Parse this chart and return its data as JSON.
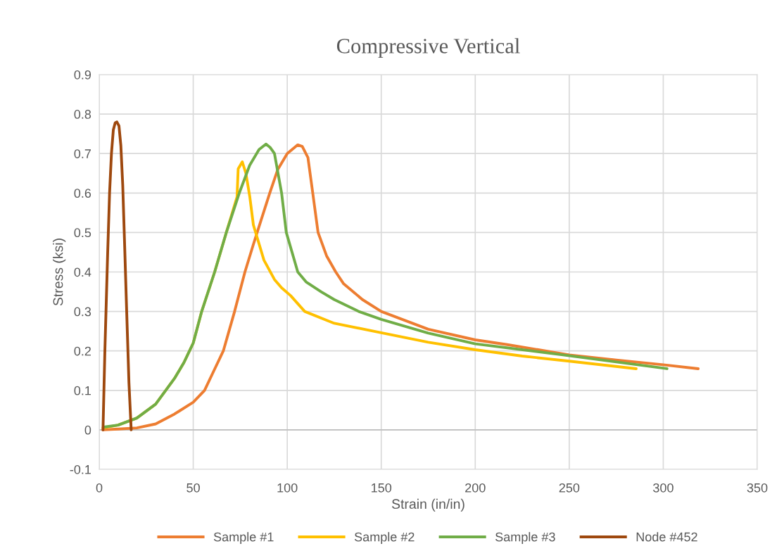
{
  "chart_data": {
    "type": "line",
    "title": "Compressive Vertical",
    "xlabel": "Strain (in/in)",
    "ylabel": "Stress (ksi)",
    "xlim": [
      0,
      350
    ],
    "xticks": [
      0,
      50,
      100,
      150,
      200,
      250,
      300,
      350
    ],
    "ylim": [
      -0.1,
      0.9
    ],
    "yticks": [
      -0.1,
      0,
      0.1,
      0.2,
      0.3,
      0.4,
      0.5,
      0.6,
      0.7,
      0.8,
      0.9
    ],
    "grid": true,
    "legend": "bottom",
    "marker": "none",
    "line_style": "solid",
    "series": [
      {
        "name": "Sample #1",
        "color": "#ed7d31",
        "x": [
          2,
          10,
          20,
          30,
          40,
          50,
          56,
          61,
          66,
          72,
          77.5,
          82,
          86,
          90.7,
          95,
          100,
          105.6,
          108,
          111,
          113,
          116.4,
          121,
          125.8,
          130,
          140,
          150,
          175,
          200,
          217,
          250,
          275,
          300,
          318.6
        ],
        "values": [
          0,
          0.002,
          0.005,
          0.015,
          0.04,
          0.07,
          0.1,
          0.15,
          0.2,
          0.3,
          0.4,
          0.47,
          0.53,
          0.6,
          0.66,
          0.7,
          0.722,
          0.718,
          0.69,
          0.62,
          0.5,
          0.44,
          0.4,
          0.37,
          0.33,
          0.3,
          0.255,
          0.228,
          0.216,
          0.19,
          0.177,
          0.165,
          0.155
        ]
      },
      {
        "name": "Sample #2",
        "color": "#ffc000",
        "x": [
          2,
          10,
          20,
          30,
          40,
          45,
          50,
          54.5,
          61.4,
          67.6,
          73.3,
          73.9,
          76.1,
          78,
          80.1,
          82,
          87.6,
          93.2,
          97,
          101.8,
          109.3,
          125,
          150,
          175,
          200,
          225,
          250,
          285.6
        ],
        "values": [
          0.005,
          0.012,
          0.03,
          0.065,
          0.13,
          0.17,
          0.22,
          0.3,
          0.4,
          0.5,
          0.59,
          0.661,
          0.679,
          0.65,
          0.59,
          0.519,
          0.43,
          0.381,
          0.36,
          0.34,
          0.3,
          0.27,
          0.246,
          0.222,
          0.203,
          0.187,
          0.174,
          0.155
        ]
      },
      {
        "name": "Sample #3",
        "color": "#70ad47",
        "x": [
          2.2,
          10,
          20,
          30,
          40,
          45,
          50,
          54.5,
          61.4,
          67.6,
          74.5,
          80,
          85,
          88.7,
          91,
          93.2,
          97,
          99.5,
          105.6,
          110,
          118,
          125,
          138,
          150,
          175,
          200,
          246.7,
          275,
          302
        ],
        "values": [
          0.007,
          0.012,
          0.03,
          0.065,
          0.13,
          0.17,
          0.22,
          0.3,
          0.4,
          0.5,
          0.6,
          0.67,
          0.71,
          0.724,
          0.715,
          0.7,
          0.6,
          0.5,
          0.4,
          0.375,
          0.35,
          0.33,
          0.3,
          0.28,
          0.245,
          0.218,
          0.19,
          0.172,
          0.155
        ]
      },
      {
        "name": "Node #452",
        "color": "#9e480e",
        "x": [
          2,
          3,
          3.6,
          4.5,
          5.5,
          6.5,
          7.5,
          8.5,
          9.4,
          10.5,
          11.5,
          12.5,
          13.5,
          14.6,
          15.8,
          17
        ],
        "values": [
          0,
          0.2,
          0.3,
          0.45,
          0.6,
          0.7,
          0.76,
          0.778,
          0.78,
          0.77,
          0.72,
          0.62,
          0.47,
          0.3,
          0.12,
          0
        ]
      }
    ]
  }
}
